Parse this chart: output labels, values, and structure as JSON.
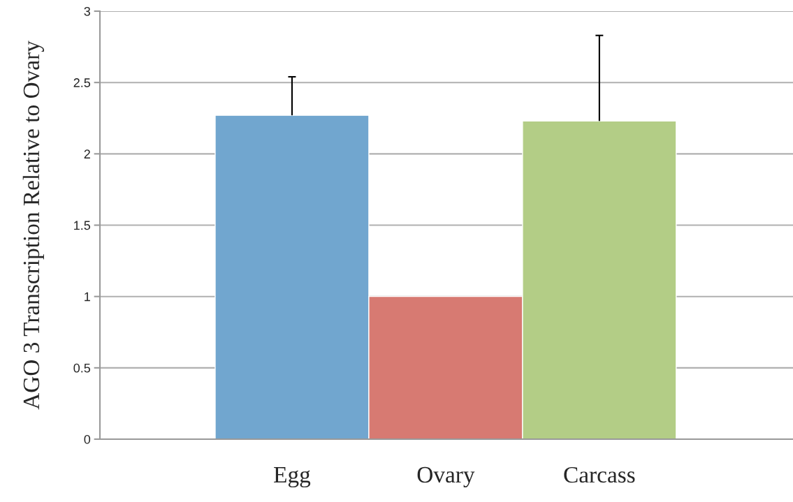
{
  "chart_data": {
    "type": "bar",
    "ylabel": "AGO 3 Transcription Relative to Ovary",
    "categories": [
      "Egg",
      "Ovary",
      "Carcass"
    ],
    "values": [
      2.27,
      1.0,
      2.23
    ],
    "colors": [
      "#71a6cf",
      "#d77a72",
      "#b3cd86"
    ],
    "errors": [
      [
        2.27,
        2.54
      ],
      null,
      [
        2.23,
        2.83
      ]
    ],
    "ylim": [
      0,
      3
    ],
    "yticks": [
      0,
      0.5,
      1,
      1.5,
      2,
      2.5,
      3
    ],
    "grid": "y",
    "legend": false
  }
}
